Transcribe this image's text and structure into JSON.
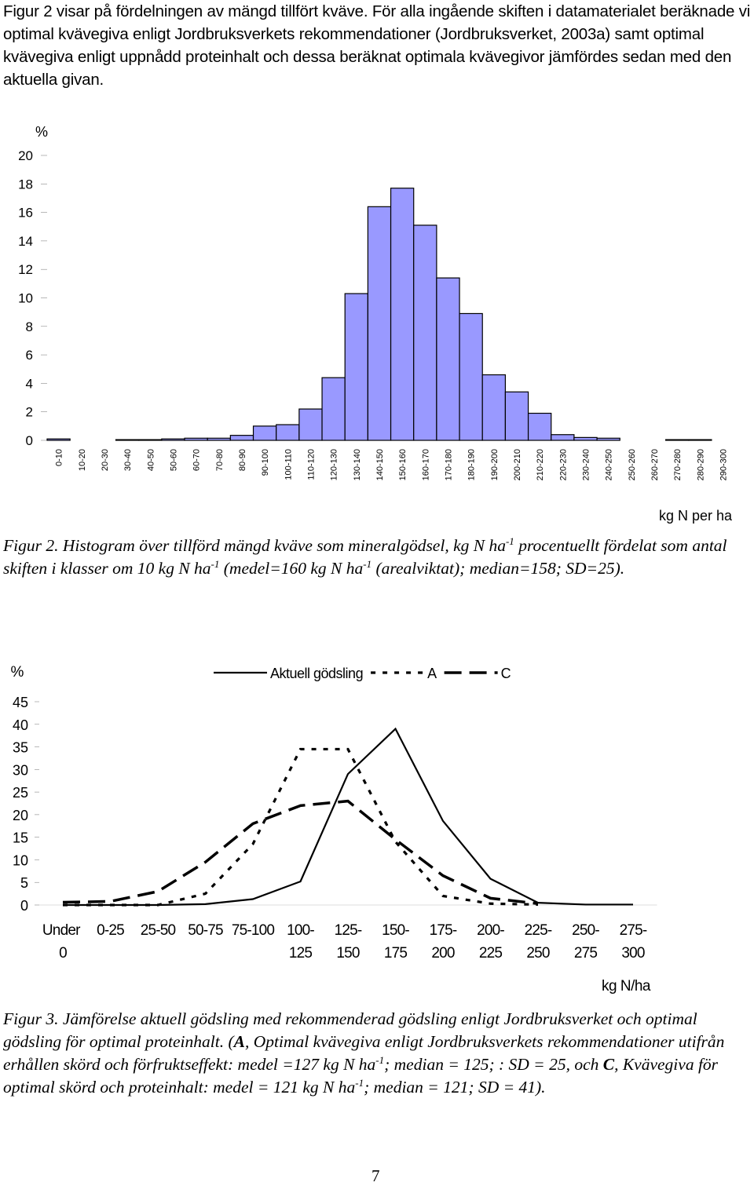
{
  "intro": "Figur 2 visar på fördelningen av mängd tillfört kväve. För alla ingående skiften i datamaterialet beräknade vi optimal kvävegiva enligt Jordbruksverkets rekommendationer (Jordbruksverket, 2003a) samt optimal kvävegiva enligt uppnådd proteinhalt och dessa beräknat optimala kvävegivor jämfördes sedan med den aktuella givan.",
  "chart_data": [
    {
      "type": "bar",
      "y_label": "%",
      "x_label": "kg N per ha",
      "color": "#9999ff",
      "categories": [
        "0-10",
        "10-20",
        "20-30",
        "30-40",
        "40-50",
        "50-60",
        "60-70",
        "70-80",
        "80-90",
        "90-100",
        "100-110",
        "110-120",
        "120-130",
        "130-140",
        "140-150",
        "150-160",
        "160-170",
        "170-180",
        "180-190",
        "190-200",
        "200-210",
        "210-220",
        "220-230",
        "230-240",
        "240-250",
        "250-260",
        "260-270",
        "270-280",
        "280-290",
        "290-300"
      ],
      "values": [
        0.1,
        0,
        0,
        0.05,
        0.05,
        0.1,
        0.15,
        0.15,
        0.35,
        1.0,
        1.1,
        2.2,
        4.4,
        10.3,
        16.4,
        17.7,
        15.1,
        11.4,
        8.9,
        4.6,
        3.4,
        1.9,
        0.4,
        0.2,
        0.15,
        0,
        0,
        0.05,
        0.05,
        0
      ],
      "ylim": [
        0,
        20
      ],
      "yticks": [
        0,
        2,
        4,
        6,
        8,
        10,
        12,
        14,
        16,
        18,
        20
      ]
    },
    {
      "type": "line",
      "y_label": "%",
      "x_label": "kg N/ha",
      "categories": [
        "Under 0",
        "0-25",
        "25-50",
        "50-75",
        "75-100",
        "100-125",
        "125-150",
        "150-175",
        "175-200",
        "200-225",
        "225-250",
        "250-275",
        "275-300"
      ],
      "series": [
        {
          "name": "Aktuell gödsling",
          "color": "#000000",
          "dash": "solid",
          "values": [
            0,
            0,
            0,
            0.2,
            1.3,
            5.2,
            29,
            39,
            18.6,
            5.8,
            0.5,
            0.1,
            0.1
          ]
        },
        {
          "name": "A",
          "color": "#000000",
          "dash": "dotted",
          "values": [
            0,
            0,
            0,
            2.5,
            13.5,
            34.5,
            34.5,
            14,
            2,
            0.3,
            0.1,
            null,
            null
          ]
        },
        {
          "name": "C",
          "color": "#000000",
          "dash": "dashed",
          "values": [
            0.6,
            0.8,
            3,
            9.5,
            18,
            22,
            23,
            14.5,
            6.5,
            1.5,
            0.3,
            null,
            null
          ]
        }
      ],
      "ylim": [
        0,
        45
      ],
      "yticks": [
        0,
        5,
        10,
        15,
        20,
        25,
        30,
        35,
        40,
        45
      ]
    }
  ],
  "caption_2": [
    "Figur 2. Histogram över tillförd mängd kväve som mineralgödsel, kg N ha",
    {
      "text": "-1",
      "format": "sup"
    },
    " procentuellt fördelat som antal skiften i klasser om 10 kg N ha",
    {
      "text": "-1",
      "format": "sup"
    },
    " (medel=160 kg N ha",
    {
      "text": "-1",
      "format": "sup"
    },
    " (arealviktat); median=158; SD=25)."
  ],
  "caption_3": [
    "Figur 3. Jämförelse aktuell gödsling med rekommenderad gödsling enligt Jordbruksverket och optimal gödsling för optimal proteinhalt. (",
    {
      "text": "A",
      "format": "bold"
    },
    ", Optimal kvävegiva enligt Jordbruksverkets rekommendationer utifrån erhållen skörd och förfruktseffekt: medel =127 kg N ha",
    {
      "text": "-1",
      "format": "sup"
    },
    "; median = 125; : SD = 25, och ",
    {
      "text": "C",
      "format": "bold"
    },
    ", Kvävegiva för optimal skörd och proteinhalt: medel = 121 kg N ha",
    {
      "text": "-1",
      "format": "sup"
    },
    "; median = 121; SD = 41)."
  ],
  "page_number": "7"
}
